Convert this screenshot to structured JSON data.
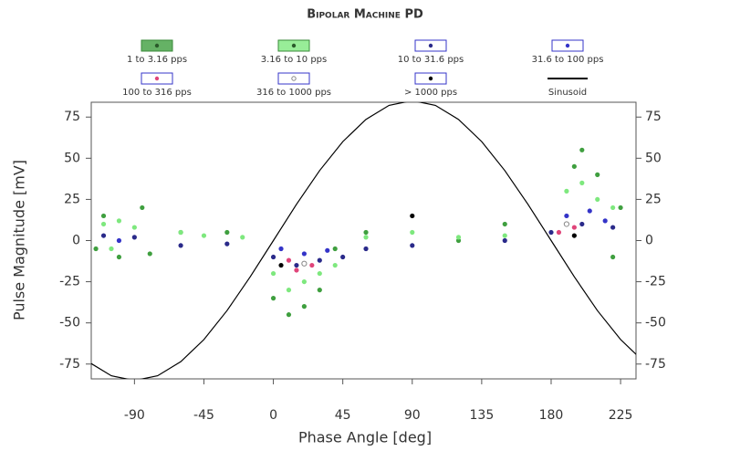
{
  "chart_data": {
    "type": "scatter",
    "title": "Bipolar Machine PD",
    "x_label": "Phase Angle [deg]",
    "y_label": "Pulse Magnitude [mV]",
    "xlim": [
      -118,
      235
    ],
    "ylim": [
      -84,
      84
    ],
    "xticks": [
      -90,
      -45,
      0,
      45,
      90,
      135,
      180,
      225
    ],
    "yticks": [
      -75,
      -50,
      -25,
      0,
      25,
      50,
      75
    ],
    "series": [
      {
        "name": "1 to 3.16 pps",
        "color": "#3f9f3f",
        "x": [
          -115,
          -110,
          -100,
          -85,
          -80,
          -60,
          -30,
          0,
          10,
          20,
          30,
          40,
          60,
          120,
          150,
          195,
          200,
          210,
          220,
          225
        ],
        "values": [
          -5,
          15,
          -10,
          20,
          -8,
          5,
          5,
          -35,
          -45,
          -40,
          -30,
          -5,
          5,
          0,
          10,
          45,
          55,
          40,
          -10,
          20
        ]
      },
      {
        "name": "3.16 to 10 pps",
        "color": "#7ee87e",
        "x": [
          -110,
          -105,
          -100,
          -90,
          -60,
          -45,
          -20,
          0,
          10,
          20,
          30,
          40,
          60,
          90,
          120,
          150,
          190,
          200,
          210,
          220
        ],
        "values": [
          10,
          -5,
          12,
          8,
          5,
          3,
          2,
          -20,
          -30,
          -25,
          -20,
          -15,
          2,
          5,
          2,
          3,
          30,
          35,
          25,
          20
        ]
      },
      {
        "name": "10 to 31.6 pps",
        "color": "#2a2a8a",
        "x": [
          -110,
          -90,
          -60,
          -30,
          0,
          15,
          30,
          45,
          60,
          90,
          150,
          180,
          200,
          220
        ],
        "values": [
          3,
          2,
          -3,
          -2,
          -10,
          -15,
          -12,
          -10,
          -5,
          -3,
          0,
          5,
          10,
          8
        ]
      },
      {
        "name": "31.6 to 100 pps",
        "color": "#3434c8",
        "x": [
          -100,
          5,
          20,
          35,
          190,
          205,
          215
        ],
        "values": [
          0,
          -5,
          -8,
          -6,
          15,
          18,
          12
        ]
      },
      {
        "name": "100 to 316 pps",
        "color": "#e0457a",
        "x": [
          10,
          15,
          25,
          185,
          195
        ],
        "values": [
          -12,
          -18,
          -15,
          5,
          8
        ]
      },
      {
        "name": "316 to 1000 pps",
        "color": "#ffffff",
        "x": [
          20,
          190
        ],
        "values": [
          -14,
          10
        ]
      },
      {
        "name": "> 1000 pps",
        "color": "#000000",
        "x": [
          5,
          90,
          195
        ],
        "values": [
          -15,
          15,
          3
        ]
      },
      {
        "name": "Sinusoid",
        "color": "#000000",
        "line": true,
        "x": [
          -120,
          -105,
          -90,
          -75,
          -60,
          -45,
          -30,
          -15,
          0,
          15,
          30,
          45,
          60,
          75,
          90,
          105,
          120,
          135,
          150,
          165,
          180,
          195,
          210,
          225,
          240
        ],
        "values": [
          -73.6,
          -82.1,
          -85,
          -82.1,
          -73.6,
          -60.1,
          -42.5,
          -22,
          0,
          22,
          42.5,
          60.1,
          73.6,
          82.1,
          85,
          82.1,
          73.6,
          60.1,
          42.5,
          22,
          0,
          -22,
          -42.5,
          -60.1,
          -73.6
        ]
      }
    ]
  }
}
